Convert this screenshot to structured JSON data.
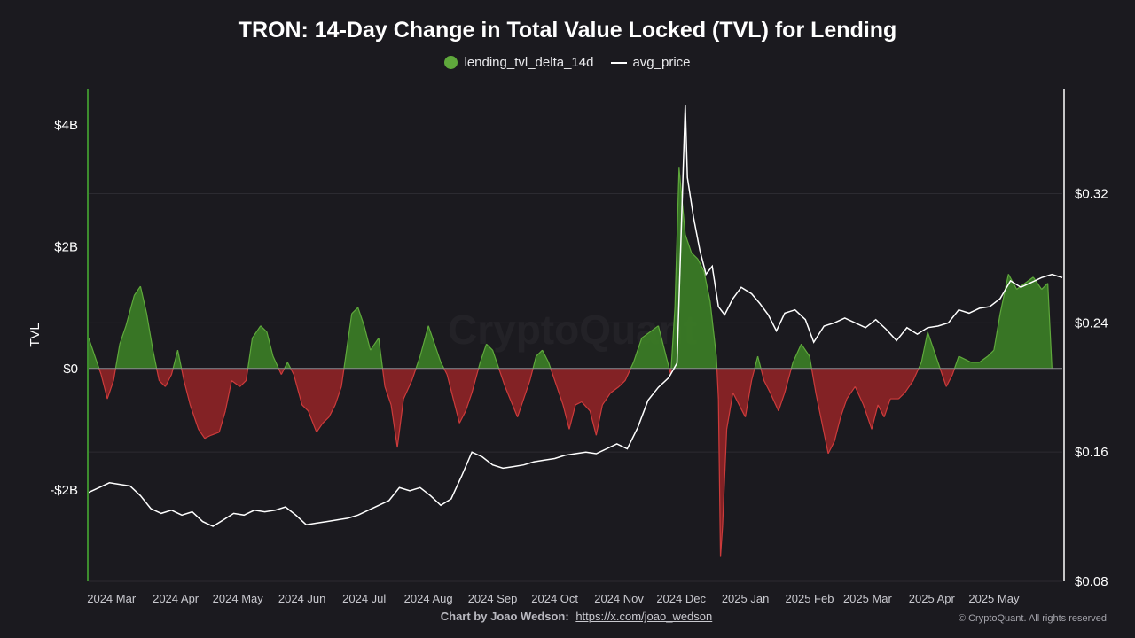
{
  "title": "TRON: 14-Day Change in Total Value Locked (TVL) for Lending",
  "legend": {
    "series1": "lending_tvl_delta_14d",
    "series2": "avg_price"
  },
  "footer": {
    "byline": "Chart by Joao Wedson:",
    "link": "https://x.com/joao_wedson",
    "copyright": "© CryptoQuant. All rights reserved"
  },
  "watermark": "CryptoQuant",
  "colors": {
    "background": "#1b1a1f",
    "positive": "#3c7f26",
    "positive_line": "#5fa83c",
    "negative": "#8f2426",
    "negative_line": "#cc3b3b",
    "price": "#ffffff",
    "left_axis": "#3d8c2e",
    "right_axis": "#ffffff"
  },
  "chart_data": {
    "type": "area",
    "x_ticks": [
      "2024 Mar",
      "2024 Apr",
      "2024 May",
      "2024 Jun",
      "2024 Jul",
      "2024 Aug",
      "2024 Sep",
      "2024 Oct",
      "2024 Nov",
      "2024 Dec",
      "2025 Jan",
      "2025 Feb",
      "2025 Mar",
      "2025 Apr",
      "2025 May"
    ],
    "x_range": [
      "2024-02-19",
      "2025-06-03"
    ],
    "y_left": {
      "label": "TVL",
      "ticks": [
        "$4B",
        "$2B",
        "$0",
        "-$2B"
      ],
      "tick_values": [
        4,
        2,
        0,
        -2
      ],
      "range": [
        -3.5,
        4.6
      ],
      "unit": "B USD"
    },
    "y_right": {
      "label": "",
      "ticks": [
        "$0.32",
        "$0.24",
        "$0.16",
        "$0.08"
      ],
      "tick_values": [
        0.32,
        0.24,
        0.16,
        0.08
      ],
      "range": [
        0.08,
        0.385
      ]
    },
    "grid": true,
    "legend_position": "top-center",
    "series": [
      {
        "name": "lending_tvl_delta_14d",
        "axis": "left",
        "style": "area-signed",
        "points": [
          [
            "2024-02-19",
            0.5
          ],
          [
            "2024-02-22",
            0.2
          ],
          [
            "2024-02-25",
            -0.1
          ],
          [
            "2024-02-28",
            -0.5
          ],
          [
            "2024-03-02",
            -0.2
          ],
          [
            "2024-03-05",
            0.4
          ],
          [
            "2024-03-08",
            0.7
          ],
          [
            "2024-03-12",
            1.2
          ],
          [
            "2024-03-15",
            1.35
          ],
          [
            "2024-03-18",
            0.9
          ],
          [
            "2024-03-21",
            0.3
          ],
          [
            "2024-03-24",
            -0.2
          ],
          [
            "2024-03-27",
            -0.3
          ],
          [
            "2024-03-30",
            -0.1
          ],
          [
            "2024-04-02",
            0.3
          ],
          [
            "2024-04-05",
            -0.2
          ],
          [
            "2024-04-08",
            -0.6
          ],
          [
            "2024-04-12",
            -1.0
          ],
          [
            "2024-04-15",
            -1.15
          ],
          [
            "2024-04-18",
            -1.1
          ],
          [
            "2024-04-22",
            -1.05
          ],
          [
            "2024-04-25",
            -0.7
          ],
          [
            "2024-04-28",
            -0.2
          ],
          [
            "2024-05-02",
            -0.3
          ],
          [
            "2024-05-05",
            -0.2
          ],
          [
            "2024-05-08",
            0.5
          ],
          [
            "2024-05-12",
            0.7
          ],
          [
            "2024-05-15",
            0.6
          ],
          [
            "2024-05-18",
            0.2
          ],
          [
            "2024-05-22",
            -0.1
          ],
          [
            "2024-05-25",
            0.1
          ],
          [
            "2024-05-28",
            -0.1
          ],
          [
            "2024-06-01",
            -0.6
          ],
          [
            "2024-06-04",
            -0.7
          ],
          [
            "2024-06-08",
            -1.05
          ],
          [
            "2024-06-11",
            -0.9
          ],
          [
            "2024-06-14",
            -0.8
          ],
          [
            "2024-06-17",
            -0.6
          ],
          [
            "2024-06-20",
            -0.3
          ],
          [
            "2024-06-25",
            0.9
          ],
          [
            "2024-06-28",
            1.0
          ],
          [
            "2024-07-01",
            0.7
          ],
          [
            "2024-07-04",
            0.3
          ],
          [
            "2024-07-08",
            0.5
          ],
          [
            "2024-07-11",
            -0.3
          ],
          [
            "2024-07-14",
            -0.6
          ],
          [
            "2024-07-17",
            -1.3
          ],
          [
            "2024-07-20",
            -0.5
          ],
          [
            "2024-07-24",
            -0.2
          ],
          [
            "2024-07-28",
            0.2
          ],
          [
            "2024-08-01",
            0.7
          ],
          [
            "2024-08-04",
            0.4
          ],
          [
            "2024-08-07",
            0.1
          ],
          [
            "2024-08-10",
            -0.1
          ],
          [
            "2024-08-13",
            -0.5
          ],
          [
            "2024-08-16",
            -0.9
          ],
          [
            "2024-08-19",
            -0.7
          ],
          [
            "2024-08-22",
            -0.4
          ],
          [
            "2024-08-26",
            0.1
          ],
          [
            "2024-08-29",
            0.4
          ],
          [
            "2024-09-01",
            0.3
          ],
          [
            "2024-09-04",
            0.0
          ],
          [
            "2024-09-07",
            -0.3
          ],
          [
            "2024-09-10",
            -0.55
          ],
          [
            "2024-09-13",
            -0.8
          ],
          [
            "2024-09-16",
            -0.5
          ],
          [
            "2024-09-19",
            -0.2
          ],
          [
            "2024-09-22",
            0.2
          ],
          [
            "2024-09-25",
            0.3
          ],
          [
            "2024-09-28",
            0.1
          ],
          [
            "2024-10-02",
            -0.3
          ],
          [
            "2024-10-05",
            -0.6
          ],
          [
            "2024-10-08",
            -1.0
          ],
          [
            "2024-10-11",
            -0.6
          ],
          [
            "2024-10-14",
            -0.55
          ],
          [
            "2024-10-18",
            -0.7
          ],
          [
            "2024-10-21",
            -1.1
          ],
          [
            "2024-10-24",
            -0.6
          ],
          [
            "2024-10-28",
            -0.4
          ],
          [
            "2024-11-01",
            -0.3
          ],
          [
            "2024-11-04",
            -0.2
          ],
          [
            "2024-11-08",
            0.1
          ],
          [
            "2024-11-12",
            0.5
          ],
          [
            "2024-11-16",
            0.6
          ],
          [
            "2024-11-20",
            0.7
          ],
          [
            "2024-11-23",
            0.3
          ],
          [
            "2024-11-26",
            -0.1
          ],
          [
            "2024-11-28",
            1.0
          ],
          [
            "2024-11-30",
            3.3
          ],
          [
            "2024-12-03",
            2.2
          ],
          [
            "2024-12-06",
            1.9
          ],
          [
            "2024-12-09",
            1.8
          ],
          [
            "2024-12-12",
            1.6
          ],
          [
            "2024-12-15",
            1.1
          ],
          [
            "2024-12-18",
            0.2
          ],
          [
            "2024-12-19",
            -0.5
          ],
          [
            "2024-12-20",
            -3.1
          ],
          [
            "2024-12-21",
            -2.6
          ],
          [
            "2024-12-23",
            -1.0
          ],
          [
            "2024-12-26",
            -0.4
          ],
          [
            "2024-12-29",
            -0.6
          ],
          [
            "2025-01-01",
            -0.8
          ],
          [
            "2025-01-04",
            -0.2
          ],
          [
            "2025-01-07",
            0.2
          ],
          [
            "2025-01-10",
            -0.2
          ],
          [
            "2025-01-13",
            -0.4
          ],
          [
            "2025-01-17",
            -0.7
          ],
          [
            "2025-01-20",
            -0.4
          ],
          [
            "2025-01-24",
            0.1
          ],
          [
            "2025-01-28",
            0.4
          ],
          [
            "2025-02-01",
            0.2
          ],
          [
            "2025-02-04",
            -0.4
          ],
          [
            "2025-02-07",
            -0.9
          ],
          [
            "2025-02-10",
            -1.4
          ],
          [
            "2025-02-13",
            -1.2
          ],
          [
            "2025-02-16",
            -0.8
          ],
          [
            "2025-02-19",
            -0.5
          ],
          [
            "2025-02-23",
            -0.3
          ],
          [
            "2025-02-27",
            -0.6
          ],
          [
            "2025-03-03",
            -1.0
          ],
          [
            "2025-03-06",
            -0.6
          ],
          [
            "2025-03-09",
            -0.8
          ],
          [
            "2025-03-12",
            -0.5
          ],
          [
            "2025-03-16",
            -0.5
          ],
          [
            "2025-03-19",
            -0.4
          ],
          [
            "2025-03-23",
            -0.2
          ],
          [
            "2025-03-27",
            0.1
          ],
          [
            "2025-03-30",
            0.6
          ],
          [
            "2025-04-02",
            0.3
          ],
          [
            "2025-04-05",
            0.0
          ],
          [
            "2025-04-08",
            -0.3
          ],
          [
            "2025-04-11",
            -0.1
          ],
          [
            "2025-04-14",
            0.2
          ],
          [
            "2025-04-17",
            0.15
          ],
          [
            "2025-04-20",
            0.1
          ],
          [
            "2025-04-24",
            0.1
          ],
          [
            "2025-04-28",
            0.2
          ],
          [
            "2025-05-01",
            0.3
          ],
          [
            "2025-05-04",
            0.9
          ],
          [
            "2025-05-08",
            1.55
          ],
          [
            "2025-05-12",
            1.3
          ],
          [
            "2025-05-16",
            1.4
          ],
          [
            "2025-05-20",
            1.5
          ],
          [
            "2025-05-24",
            1.3
          ],
          [
            "2025-05-27",
            1.4
          ],
          [
            "2025-05-29",
            0.0
          ]
        ]
      },
      {
        "name": "avg_price",
        "axis": "right",
        "style": "line",
        "points": [
          [
            "2024-02-19",
            0.135
          ],
          [
            "2024-02-24",
            0.138
          ],
          [
            "2024-02-29",
            0.141
          ],
          [
            "2024-03-05",
            0.14
          ],
          [
            "2024-03-10",
            0.139
          ],
          [
            "2024-03-15",
            0.133
          ],
          [
            "2024-03-20",
            0.125
          ],
          [
            "2024-03-25",
            0.122
          ],
          [
            "2024-03-30",
            0.124
          ],
          [
            "2024-04-04",
            0.121
          ],
          [
            "2024-04-09",
            0.123
          ],
          [
            "2024-04-14",
            0.117
          ],
          [
            "2024-04-19",
            0.114
          ],
          [
            "2024-04-24",
            0.118
          ],
          [
            "2024-04-29",
            0.122
          ],
          [
            "2024-05-04",
            0.121
          ],
          [
            "2024-05-09",
            0.124
          ],
          [
            "2024-05-14",
            0.123
          ],
          [
            "2024-05-19",
            0.124
          ],
          [
            "2024-05-24",
            0.126
          ],
          [
            "2024-05-29",
            0.121
          ],
          [
            "2024-06-03",
            0.115
          ],
          [
            "2024-06-08",
            0.116
          ],
          [
            "2024-06-13",
            0.117
          ],
          [
            "2024-06-18",
            0.118
          ],
          [
            "2024-06-23",
            0.119
          ],
          [
            "2024-06-28",
            0.121
          ],
          [
            "2024-07-03",
            0.124
          ],
          [
            "2024-07-08",
            0.127
          ],
          [
            "2024-07-13",
            0.13
          ],
          [
            "2024-07-18",
            0.138
          ],
          [
            "2024-07-23",
            0.136
          ],
          [
            "2024-07-28",
            0.138
          ],
          [
            "2024-08-02",
            0.133
          ],
          [
            "2024-08-07",
            0.127
          ],
          [
            "2024-08-12",
            0.131
          ],
          [
            "2024-08-17",
            0.145
          ],
          [
            "2024-08-22",
            0.16
          ],
          [
            "2024-08-27",
            0.157
          ],
          [
            "2024-09-01",
            0.152
          ],
          [
            "2024-09-06",
            0.15
          ],
          [
            "2024-09-11",
            0.151
          ],
          [
            "2024-09-16",
            0.152
          ],
          [
            "2024-09-21",
            0.154
          ],
          [
            "2024-09-26",
            0.155
          ],
          [
            "2024-10-01",
            0.156
          ],
          [
            "2024-10-06",
            0.158
          ],
          [
            "2024-10-11",
            0.159
          ],
          [
            "2024-10-16",
            0.16
          ],
          [
            "2024-10-21",
            0.159
          ],
          [
            "2024-10-26",
            0.162
          ],
          [
            "2024-10-31",
            0.165
          ],
          [
            "2024-11-05",
            0.162
          ],
          [
            "2024-11-10",
            0.175
          ],
          [
            "2024-11-15",
            0.192
          ],
          [
            "2024-11-20",
            0.2
          ],
          [
            "2024-11-25",
            0.206
          ],
          [
            "2024-11-29",
            0.215
          ],
          [
            "2024-12-03",
            0.375
          ],
          [
            "2024-12-04",
            0.33
          ],
          [
            "2024-12-07",
            0.305
          ],
          [
            "2024-12-10",
            0.285
          ],
          [
            "2024-12-13",
            0.27
          ],
          [
            "2024-12-16",
            0.275
          ],
          [
            "2024-12-19",
            0.25
          ],
          [
            "2024-12-22",
            0.245
          ],
          [
            "2024-12-26",
            0.255
          ],
          [
            "2024-12-30",
            0.262
          ],
          [
            "2025-01-04",
            0.258
          ],
          [
            "2025-01-08",
            0.252
          ],
          [
            "2025-01-12",
            0.245
          ],
          [
            "2025-01-16",
            0.235
          ],
          [
            "2025-01-20",
            0.246
          ],
          [
            "2025-01-25",
            0.248
          ],
          [
            "2025-01-30",
            0.242
          ],
          [
            "2025-02-03",
            0.228
          ],
          [
            "2025-02-08",
            0.238
          ],
          [
            "2025-02-13",
            0.24
          ],
          [
            "2025-02-18",
            0.243
          ],
          [
            "2025-02-23",
            0.24
          ],
          [
            "2025-02-28",
            0.237
          ],
          [
            "2025-03-05",
            0.242
          ],
          [
            "2025-03-10",
            0.236
          ],
          [
            "2025-03-15",
            0.229
          ],
          [
            "2025-03-20",
            0.237
          ],
          [
            "2025-03-25",
            0.233
          ],
          [
            "2025-03-30",
            0.237
          ],
          [
            "2025-04-04",
            0.238
          ],
          [
            "2025-04-09",
            0.24
          ],
          [
            "2025-04-14",
            0.248
          ],
          [
            "2025-04-19",
            0.246
          ],
          [
            "2025-04-24",
            0.249
          ],
          [
            "2025-04-29",
            0.25
          ],
          [
            "2025-05-04",
            0.255
          ],
          [
            "2025-05-09",
            0.266
          ],
          [
            "2025-05-14",
            0.262
          ],
          [
            "2025-05-19",
            0.265
          ],
          [
            "2025-05-24",
            0.268
          ],
          [
            "2025-05-29",
            0.27
          ],
          [
            "2025-06-03",
            0.268
          ]
        ]
      }
    ]
  }
}
